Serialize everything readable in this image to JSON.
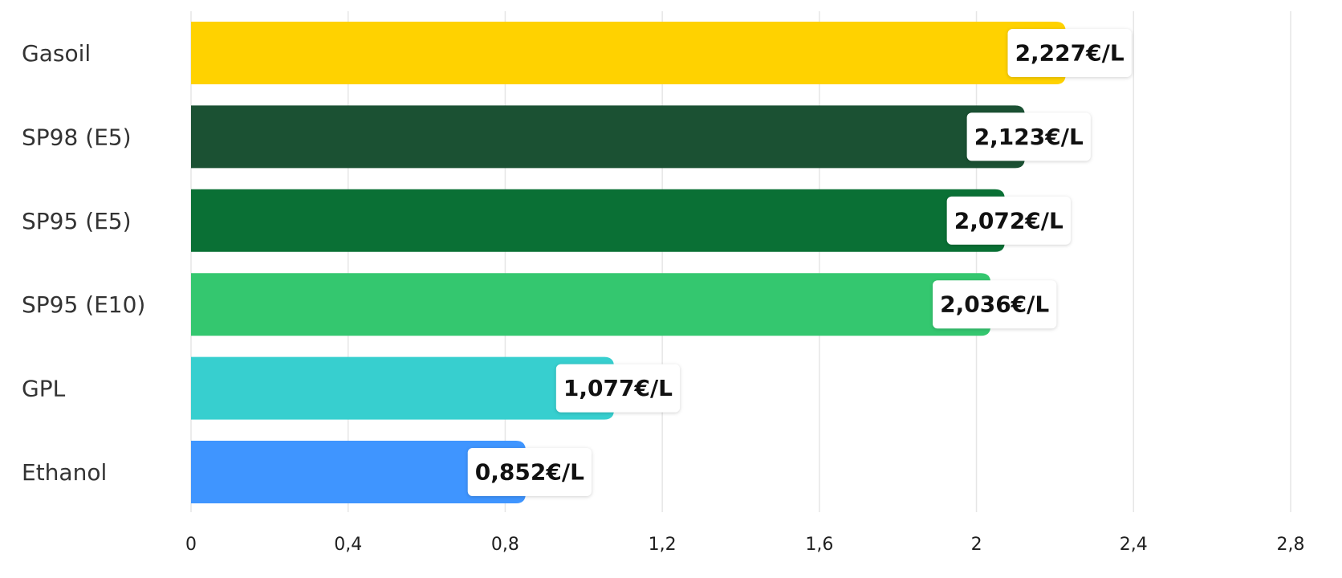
{
  "chart_data": {
    "type": "bar",
    "orientation": "horizontal",
    "categories": [
      "Gasoil",
      "SP98 (E5)",
      "SP95 (E5)",
      "SP95 (E10)",
      "GPL",
      "Ethanol"
    ],
    "values": [
      2.227,
      2.123,
      2.072,
      2.036,
      1.077,
      0.852
    ],
    "data_labels": [
      "2,227€/L",
      "2,123€/L",
      "2,072€/L",
      "2,036€/L",
      "1,077€/L",
      "0,852€/L"
    ],
    "bar_colors": [
      "#FFD200",
      "#1B5133",
      "#0A7035",
      "#34C76F",
      "#37CFCF",
      "#3F95FF"
    ],
    "x_ticks": [
      0,
      0.4,
      0.8,
      1.2,
      1.6,
      2,
      2.4,
      2.8
    ],
    "x_tick_labels": [
      "0",
      "0,4",
      "0,8",
      "1,2",
      "1,6",
      "2",
      "2,4",
      "2,8"
    ],
    "xlim": [
      0,
      2.8
    ],
    "grid": true,
    "title": "",
    "xlabel": "",
    "ylabel": ""
  }
}
